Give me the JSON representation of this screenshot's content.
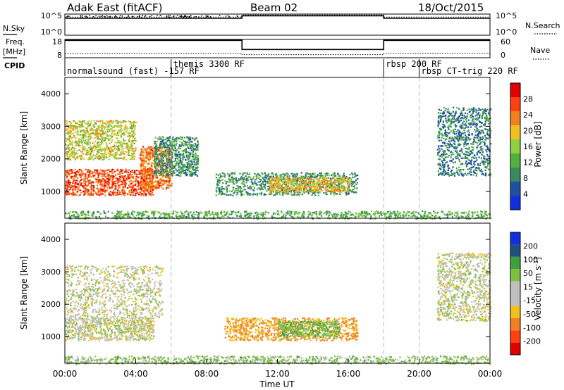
{
  "header": {
    "station": "Adak East (fitACF)",
    "beam": "Beam 02",
    "date": "18/Oct/2015"
  },
  "colors": {
    "power": [
      "#1030e0",
      "#2050a0",
      "#3a8a60",
      "#50b040",
      "#90d040",
      "#f0c020",
      "#f08020",
      "#ff4010",
      "#e00000"
    ],
    "velocity": [
      "#e00000",
      "#ff4010",
      "#f08020",
      "#f0c020",
      "#c0c0c0",
      "#c0c0c0",
      "#80c040",
      "#40a040",
      "#205080",
      "#1030e0"
    ],
    "ground": "#b0b0b0"
  },
  "time_axis": {
    "label": "Time UT",
    "ticks": [
      "00:00",
      "04:00",
      "08:00",
      "12:00",
      "16:00",
      "20:00",
      "00:00"
    ],
    "tick_hours": [
      0,
      4,
      8,
      12,
      16,
      20,
      24
    ],
    "range_hours": [
      0,
      24
    ]
  },
  "nsky_panel": {
    "left_label": "N.Sky",
    "right_label": "N.Search",
    "left_ticks": [
      "10^5",
      "10^0"
    ],
    "right_ticks": [
      "10^5",
      "10^0"
    ]
  },
  "freq_panel": {
    "left_label_1": "Freq.",
    "left_label_2": "[MHz]",
    "right_label": "Nave",
    "left_ticks": [
      "18",
      "8"
    ],
    "right_ticks": [
      "60",
      "0"
    ],
    "cpid_label": "CPID"
  },
  "cpid_segments": [
    {
      "label": "normalsound (fast) -157 RF",
      "start_hour": 0
    },
    {
      "label": "themis 3300 RF",
      "start_hour": 6
    },
    {
      "label": "rbsp 200 RF",
      "start_hour": 18
    },
    {
      "label": "rbsp CT-trig 220 RF",
      "start_hour": 20
    }
  ],
  "power_panel": {
    "ylabel": "Slant Range [km]",
    "yticks": [
      "1000",
      "2000",
      "3000",
      "4000"
    ],
    "ytick_values": [
      1000,
      2000,
      3000,
      4000
    ],
    "yrange": [
      180,
      4500
    ],
    "cbar_label": "Power [dB]",
    "cbar_ticks": [
      "4",
      "8",
      "12",
      "16",
      "20",
      "24",
      "28"
    ],
    "cbar_values": [
      4,
      8,
      12,
      16,
      20,
      24,
      28
    ],
    "cbar_range": [
      0,
      32
    ]
  },
  "velocity_panel": {
    "ylabel": "Slant Range [km]",
    "yticks": [
      "1000",
      "2000",
      "3000",
      "4000"
    ],
    "ytick_values": [
      1000,
      2000,
      3000,
      4000
    ],
    "yrange": [
      180,
      4500
    ],
    "cbar_label": "Velocity [m s",
    "cbar_label_sup": "-1",
    "cbar_label_end": "]",
    "cbar_ticks": [
      "-200",
      "-100",
      "-50",
      "-15",
      "15",
      "50",
      "100",
      "200"
    ]
  },
  "chart_data": [
    {
      "type": "line",
      "title": "N.Sky / N.Search",
      "x_unit": "hour UT",
      "series": [
        {
          "name": "N.Sky",
          "x": [
            0,
            10,
            10,
            18,
            18,
            24
          ],
          "y": [
            4,
            4,
            4.6,
            4.6,
            4,
            4
          ]
        },
        {
          "name": "N.Search",
          "x": [
            0,
            10,
            10,
            18,
            18,
            24
          ],
          "y": [
            4.3,
            4.3,
            4.8,
            4.8,
            4.3,
            4.3
          ]
        }
      ]
    },
    {
      "type": "line",
      "title": "Freq. / Nave",
      "x_unit": "hour UT",
      "series": [
        {
          "name": "Freq.",
          "x": [
            0,
            10,
            10,
            18,
            18,
            24
          ],
          "y": [
            17.5,
            17.5,
            12.5,
            12.5,
            17.5,
            17.5
          ]
        },
        {
          "name": "Nave",
          "x": [
            0,
            10,
            10,
            18,
            18,
            24
          ],
          "y": [
            14,
            14,
            10,
            10,
            15,
            15
          ]
        }
      ]
    },
    {
      "type": "heatmap",
      "title": "Power [dB]",
      "x_unit": "hour UT",
      "y_unit": "km",
      "regions": [
        {
          "x0": 0.0,
          "x1": 5.0,
          "y0": 900,
          "y1": 1700,
          "value": 26
        },
        {
          "x0": 4.2,
          "x1": 6.0,
          "y0": 1100,
          "y1": 2400,
          "value": 24
        },
        {
          "x0": 0.0,
          "x1": 4.0,
          "y0": 2000,
          "y1": 3200,
          "value": 18
        },
        {
          "x0": 5.0,
          "x1": 7.5,
          "y0": 1500,
          "y1": 2700,
          "value": 10
        },
        {
          "x0": 8.5,
          "x1": 16.5,
          "y0": 900,
          "y1": 1600,
          "value": 10
        },
        {
          "x0": 11.5,
          "x1": 16.0,
          "y0": 1000,
          "y1": 1450,
          "value": 20
        },
        {
          "x0": 21.0,
          "x1": 24.0,
          "y0": 1500,
          "y1": 3600,
          "value": 8
        },
        {
          "x0": 0.0,
          "x1": 24.0,
          "y0": 180,
          "y1": 420,
          "value": 12
        }
      ]
    },
    {
      "type": "heatmap",
      "title": "Velocity [m s-1]",
      "x_unit": "hour UT",
      "y_unit": "km",
      "regions": [
        {
          "x0": 0.0,
          "x1": 5.0,
          "y0": 900,
          "y1": 1600,
          "value": 0
        },
        {
          "x0": 0.0,
          "x1": 5.5,
          "y0": 1600,
          "y1": 3200,
          "value": 0
        },
        {
          "x0": 9.0,
          "x1": 16.5,
          "y0": 900,
          "y1": 1600,
          "value": -50
        },
        {
          "x0": 12.0,
          "x1": 15.5,
          "y0": 1000,
          "y1": 1500,
          "value": 40
        },
        {
          "x0": 21.0,
          "x1": 24.0,
          "y0": 1500,
          "y1": 3600,
          "value": 0
        },
        {
          "x0": 0.0,
          "x1": 24.0,
          "y0": 180,
          "y1": 420,
          "value": 30
        }
      ]
    }
  ]
}
